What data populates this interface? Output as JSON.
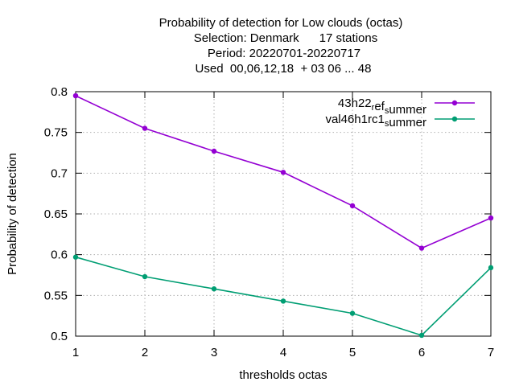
{
  "chart_data": {
    "type": "line",
    "title_lines": [
      "Probability of detection  for Low clouds (octas)",
      "Selection: Denmark      17 stations",
      "Period: 20220701-20220717",
      "Used  00,06,12,18  + 03 06 ... 48"
    ],
    "xlabel": "thresholds octas",
    "ylabel": "Probability of detection",
    "x": [
      1,
      2,
      3,
      4,
      5,
      6,
      7
    ],
    "xlim": [
      1,
      7
    ],
    "ylim": [
      0.5,
      0.8
    ],
    "x_ticks": [
      "1",
      "2",
      "3",
      "4",
      "5",
      "6",
      "7"
    ],
    "y_ticks": [
      {
        "value": 0.5,
        "label": "0.5"
      },
      {
        "value": 0.55,
        "label": "0.55"
      },
      {
        "value": 0.6,
        "label": "0.6"
      },
      {
        "value": 0.65,
        "label": "0.65"
      },
      {
        "value": 0.7,
        "label": "0.7"
      },
      {
        "value": 0.75,
        "label": "0.75"
      },
      {
        "value": 0.8,
        "label": "0.8"
      }
    ],
    "grid": true,
    "legend_position": "top-right",
    "series": [
      {
        "name": "43h22_ref_summer",
        "legend_parts": [
          {
            "t": "43h22"
          },
          {
            "t": "r",
            "sub": true
          },
          {
            "t": "ef"
          },
          {
            "t": "s",
            "sub": true
          },
          {
            "t": "ummer"
          }
        ],
        "color": "#9400d3",
        "values": [
          0.795,
          0.755,
          0.727,
          0.701,
          0.66,
          0.608,
          0.645
        ]
      },
      {
        "name": "val46h1rc1_summer",
        "legend_parts": [
          {
            "t": "val46h1rc1"
          },
          {
            "t": "s",
            "sub": true
          },
          {
            "t": "ummer"
          }
        ],
        "color": "#009e73",
        "values": [
          0.597,
          0.573,
          0.558,
          0.543,
          0.528,
          0.501,
          0.584
        ]
      }
    ]
  }
}
